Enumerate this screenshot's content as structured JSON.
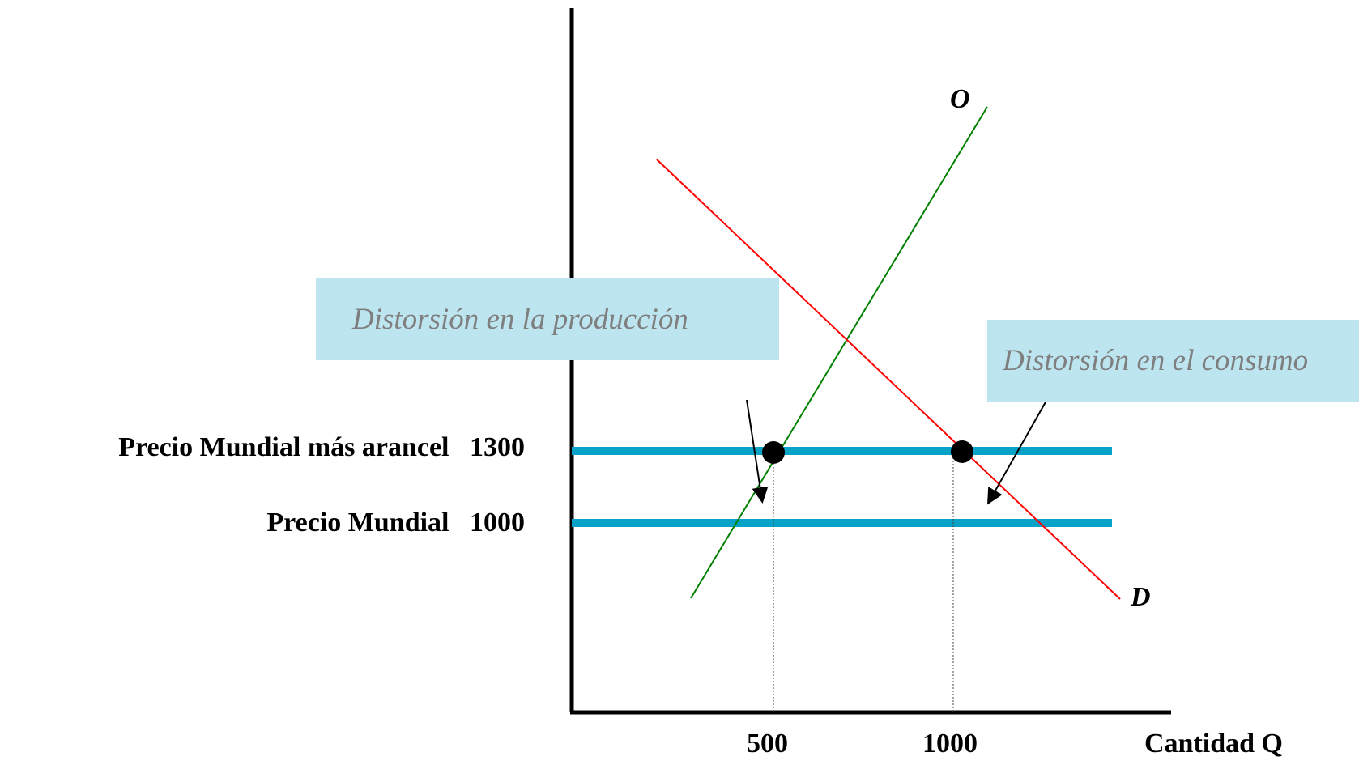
{
  "price_levels": [
    {
      "label": "Precio Mundial más arancel",
      "value": "1300"
    },
    {
      "label": "Precio Mundial",
      "value": "1000"
    }
  ],
  "quantity_ticks": [
    "500",
    "1000"
  ],
  "x_axis_label": "Cantidad Q",
  "curves": {
    "supply": "O",
    "demand": "D"
  },
  "notes": {
    "production": "Distorsión en la producción",
    "consumption": "Distorsión en el consumo"
  },
  "colors": {
    "price_lines": "#0aa3c8",
    "supply": "#008000",
    "demand": "#ff0000",
    "note_background": "#bde5f0",
    "note_text": "#7f7f7f"
  }
}
